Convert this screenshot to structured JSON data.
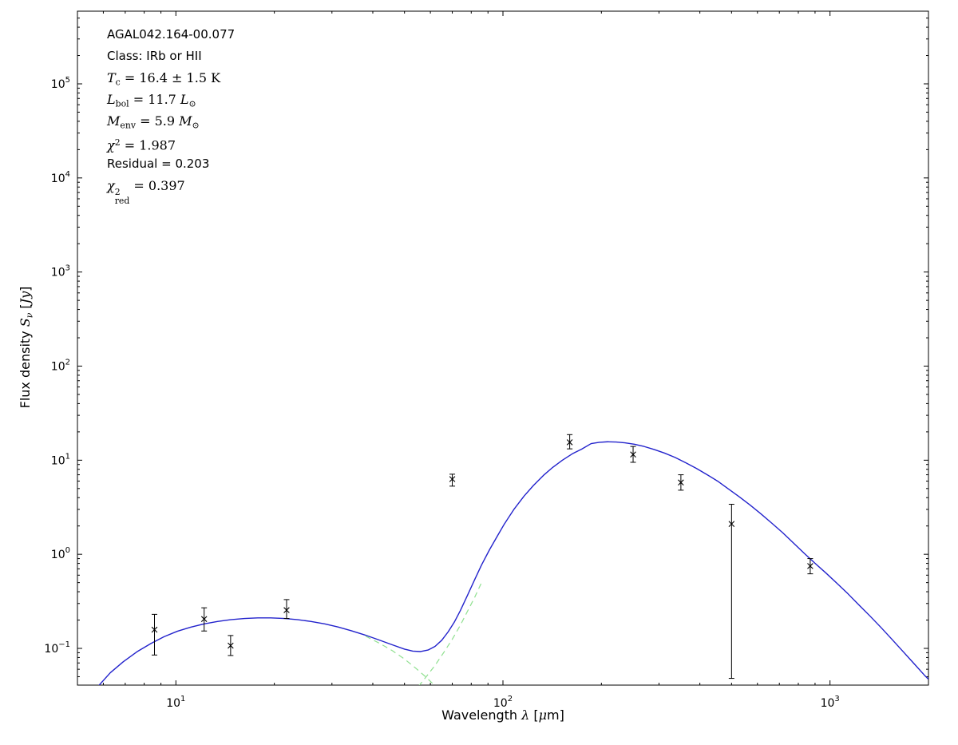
{
  "chart_data": {
    "type": "line",
    "subtype": "sed-log-log-with-scatter",
    "xscale": "log",
    "yscale": "log",
    "xlim": [
      5,
      2000
    ],
    "ylim": [
      0.0407,
      592000
    ],
    "x_tick_exponents": [
      1,
      2,
      3
    ],
    "y_tick_exponents": [
      -1,
      0,
      1,
      2,
      3,
      4,
      5
    ],
    "grid": false,
    "legend": "none",
    "colors": {
      "model": "#2222cc",
      "components": "#8fe08f",
      "data": "#000000",
      "frame": "#000000"
    },
    "xlabel_tokens": [
      {
        "t": "Wavelength "
      },
      {
        "it": "λ"
      },
      {
        "t": " ["
      },
      {
        "it": "μ"
      },
      {
        "t": "m]"
      }
    ],
    "ylabel_tokens": [
      {
        "t": "Flux density "
      },
      {
        "it": "S"
      },
      {
        "isub": "ν"
      },
      {
        "t": " ["
      },
      {
        "it": "Jy"
      },
      {
        "t": "]"
      }
    ],
    "annotations": [
      {
        "font": "sans",
        "tokens": [
          {
            "t": "AGAL042.164-00.077"
          }
        ]
      },
      {
        "font": "sans",
        "tokens": [
          {
            "t": "Class: IRb or HII"
          }
        ]
      },
      {
        "font": "math",
        "tokens": [
          {
            "it": "T"
          },
          {
            "sub": "c"
          },
          {
            "t": " = 16.4 ± 1.5 K"
          }
        ]
      },
      {
        "font": "math",
        "tokens": [
          {
            "it": "L"
          },
          {
            "sub": "bol"
          },
          {
            "t": " = 11.7 "
          },
          {
            "it": "L"
          },
          {
            "sub": "⊙"
          }
        ]
      },
      {
        "font": "math",
        "tokens": [
          {
            "it": "M"
          },
          {
            "sub": "env"
          },
          {
            "t": " = 5.9 "
          },
          {
            "it": "M"
          },
          {
            "sub": "⊙"
          }
        ]
      },
      {
        "font": "math",
        "tokens": [
          {
            "it": "χ"
          },
          {
            "sup": "2"
          },
          {
            "t": " = 1.987"
          }
        ]
      },
      {
        "font": "sans",
        "tokens": [
          {
            "t": "Residual = 0.203"
          }
        ]
      },
      {
        "font": "math",
        "tokens": [
          {
            "it": "χ"
          },
          {
            "supsub": {
              "sup": "2",
              "sub": "red"
            }
          },
          {
            "t": " = 0.397"
          }
        ]
      }
    ],
    "series": [
      {
        "name": "model-total-curve",
        "color": "#2222cc",
        "dash": "solid",
        "width": 1.4,
        "points": [
          [
            5.8,
            0.04
          ],
          [
            6.3,
            0.055
          ],
          [
            6.9,
            0.072
          ],
          [
            7.6,
            0.092
          ],
          [
            8.4,
            0.113
          ],
          [
            9.2,
            0.133
          ],
          [
            10.1,
            0.152
          ],
          [
            11.1,
            0.168
          ],
          [
            12.2,
            0.182
          ],
          [
            13.4,
            0.193
          ],
          [
            14.7,
            0.202
          ],
          [
            16.2,
            0.208
          ],
          [
            17.8,
            0.211
          ],
          [
            19.5,
            0.211
          ],
          [
            21.5,
            0.208
          ],
          [
            23.6,
            0.202
          ],
          [
            25.9,
            0.193
          ],
          [
            28.5,
            0.182
          ],
          [
            31.3,
            0.169
          ],
          [
            34.4,
            0.154
          ],
          [
            37.8,
            0.139
          ],
          [
            41.5,
            0.124
          ],
          [
            45.6,
            0.11
          ],
          [
            50.1,
            0.098
          ],
          [
            53,
            0.0935
          ],
          [
            56,
            0.0925
          ],
          [
            59,
            0.096
          ],
          [
            62,
            0.105
          ],
          [
            65,
            0.122
          ],
          [
            68,
            0.15
          ],
          [
            71,
            0.19
          ],
          [
            74,
            0.25
          ],
          [
            78,
            0.37
          ],
          [
            82,
            0.54
          ],
          [
            86,
            0.77
          ],
          [
            91,
            1.12
          ],
          [
            96,
            1.55
          ],
          [
            101,
            2.1
          ],
          [
            108,
            3.0
          ],
          [
            116,
            4.15
          ],
          [
            124,
            5.4
          ],
          [
            133,
            6.9
          ],
          [
            142,
            8.4
          ],
          [
            152,
            10.0
          ],
          [
            163,
            11.7
          ],
          [
            174,
            13.1
          ],
          [
            186,
            15.0
          ],
          [
            197,
            15.5
          ],
          [
            209,
            15.7
          ],
          [
            222,
            15.6
          ],
          [
            236,
            15.3
          ],
          [
            252,
            14.8
          ],
          [
            270,
            14.0
          ],
          [
            290,
            13.0
          ],
          [
            312,
            11.9
          ],
          [
            336,
            10.7
          ],
          [
            362,
            9.4
          ],
          [
            390,
            8.2
          ],
          [
            420,
            7.05
          ],
          [
            453,
            6.0
          ],
          [
            489,
            4.95
          ],
          [
            527,
            4.1
          ],
          [
            569,
            3.35
          ],
          [
            614,
            2.7
          ],
          [
            663,
            2.15
          ],
          [
            716,
            1.7
          ],
          [
            773,
            1.32
          ],
          [
            835,
            1.02
          ],
          [
            901,
            0.8
          ],
          [
            973,
            0.63
          ],
          [
            1051,
            0.49
          ],
          [
            1135,
            0.38
          ],
          [
            1225,
            0.29
          ],
          [
            1323,
            0.222
          ],
          [
            1429,
            0.168
          ],
          [
            1543,
            0.126
          ],
          [
            1666,
            0.094
          ],
          [
            1799,
            0.07
          ],
          [
            1943,
            0.052
          ],
          [
            2000,
            0.047
          ]
        ]
      },
      {
        "name": "warm-component-curve",
        "color": "#8fe08f",
        "dash": "dashed",
        "width": 1.2,
        "points": [
          [
            38,
            0.135
          ],
          [
            42,
            0.113
          ],
          [
            46,
            0.094
          ],
          [
            50,
            0.077
          ],
          [
            54,
            0.062
          ],
          [
            58,
            0.05
          ],
          [
            62,
            0.04
          ],
          [
            66,
            0.032
          ],
          [
            70,
            0.026
          ]
        ]
      },
      {
        "name": "cold-component-curve",
        "color": "#8fe08f",
        "dash": "dashed",
        "width": 1.2,
        "points": [
          [
            42,
            0.014
          ],
          [
            46,
            0.019
          ],
          [
            50,
            0.026
          ],
          [
            54,
            0.036
          ],
          [
            58,
            0.049
          ],
          [
            62,
            0.066
          ],
          [
            66,
            0.091
          ],
          [
            70,
            0.125
          ],
          [
            74,
            0.175
          ],
          [
            78,
            0.25
          ],
          [
            82,
            0.35
          ],
          [
            86,
            0.5
          ]
        ]
      }
    ],
    "scatter": {
      "name": "photometry-points",
      "marker": "x",
      "color": "#000000",
      "points": [
        {
          "x": 8.6,
          "y": 0.158,
          "lo": 0.085,
          "hi": 0.23
        },
        {
          "x": 12.2,
          "y": 0.205,
          "lo": 0.153,
          "hi": 0.27
        },
        {
          "x": 14.7,
          "y": 0.107,
          "lo": 0.084,
          "hi": 0.137
        },
        {
          "x": 21.8,
          "y": 0.255,
          "lo": 0.208,
          "hi": 0.33
        },
        {
          "x": 70,
          "y": 6.3,
          "lo": 5.3,
          "hi": 7.1
        },
        {
          "x": 160,
          "y": 15.5,
          "lo": 13.2,
          "hi": 18.7
        },
        {
          "x": 250,
          "y": 11.5,
          "lo": 9.5,
          "hi": 14.0
        },
        {
          "x": 350,
          "y": 5.8,
          "lo": 4.8,
          "hi": 7.0
        },
        {
          "x": 500,
          "y": 2.1,
          "lo": 0.048,
          "hi": 3.4
        },
        {
          "x": 870,
          "y": 0.75,
          "lo": 0.62,
          "hi": 0.9
        }
      ]
    }
  }
}
